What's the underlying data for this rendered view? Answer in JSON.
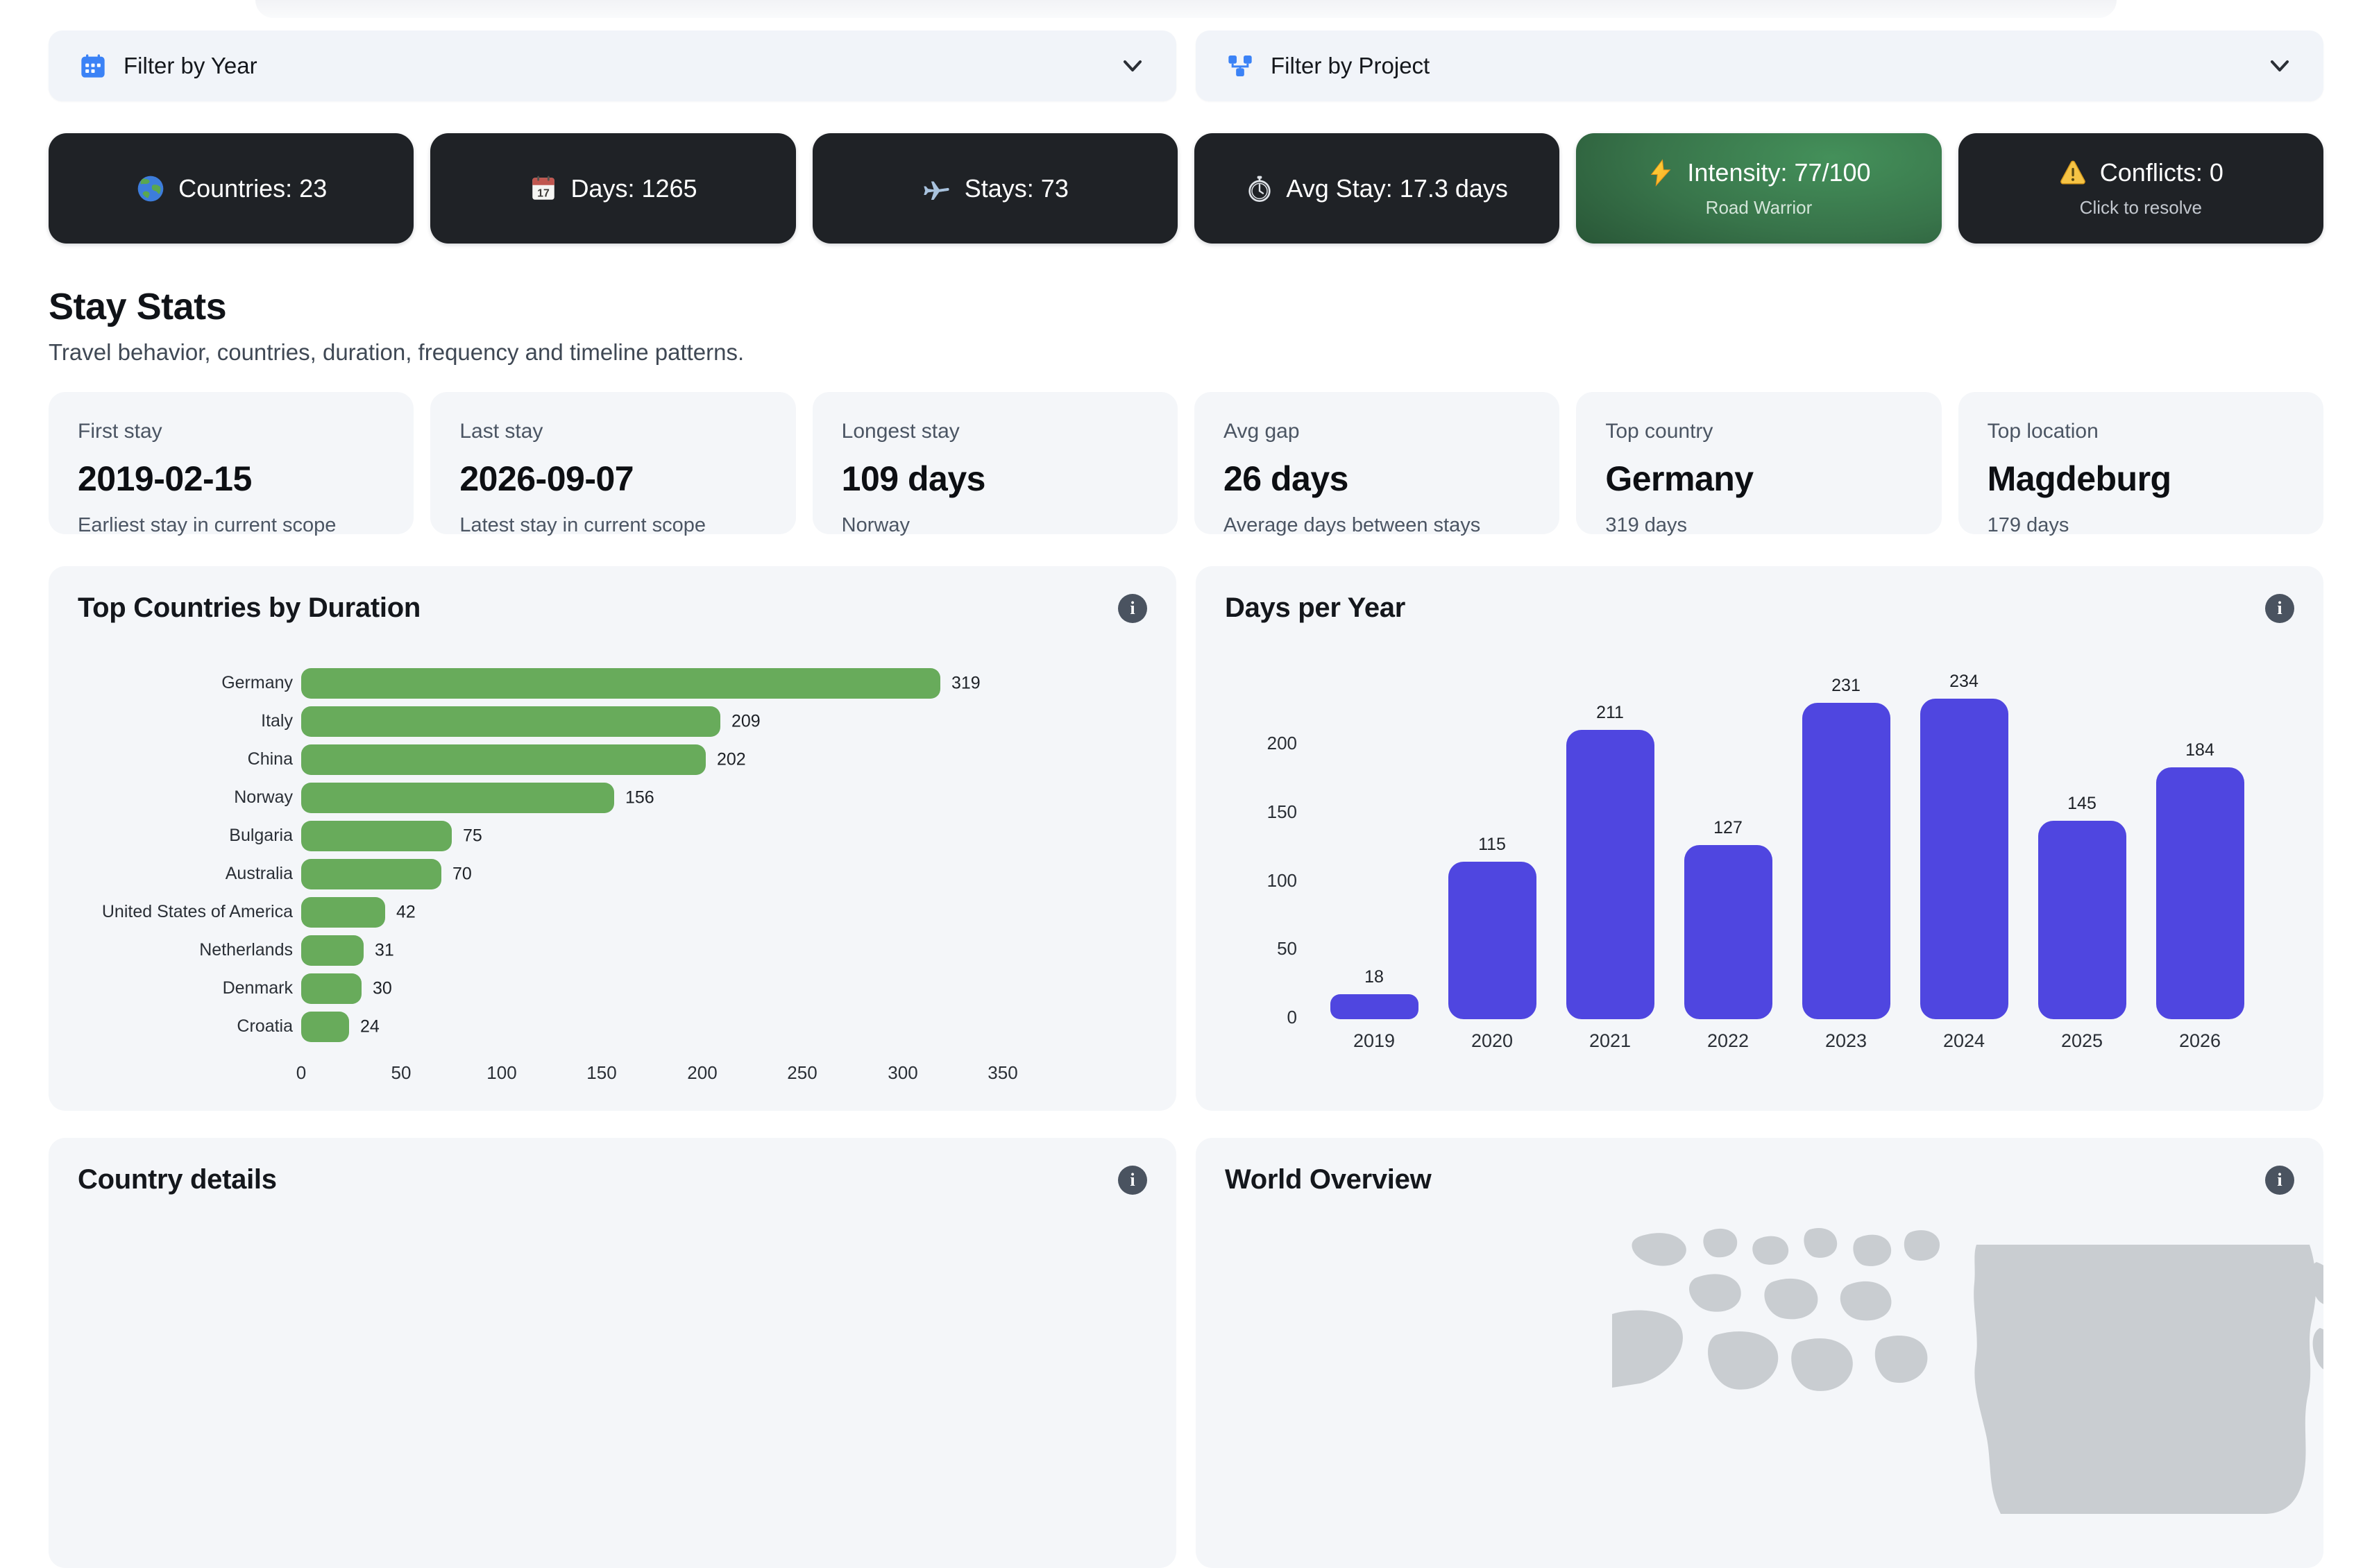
{
  "filters": [
    {
      "label": "Filter by Year",
      "icon": "calendar-icon"
    },
    {
      "label": "Filter by Project",
      "icon": "project-icon"
    }
  ],
  "kpi_pills": [
    {
      "icon": "globe-icon",
      "label": "Countries: 23"
    },
    {
      "icon": "calendar-page-icon",
      "label": "Days: 1265"
    },
    {
      "icon": "airplane-icon",
      "label": "Stays: 73"
    },
    {
      "icon": "stopwatch-icon",
      "label": "Avg Stay: 17.3 days"
    },
    {
      "icon": "lightning-icon",
      "label": "Intensity: 77/100",
      "sub": "Road Warrior",
      "variant": "green"
    },
    {
      "icon": "warning-icon",
      "label": "Conflicts: 0",
      "sub": "Click to resolve"
    }
  ],
  "section": {
    "title": "Stay Stats",
    "subtitle": "Travel behavior, countries, duration, frequency and timeline patterns."
  },
  "stat_cards": [
    {
      "label": "First stay",
      "value": "2019-02-15",
      "sub": "Earliest stay in current scope"
    },
    {
      "label": "Last stay",
      "value": "2026-09-07",
      "sub": "Latest stay in current scope"
    },
    {
      "label": "Longest stay",
      "value": "109 days",
      "sub": "Norway"
    },
    {
      "label": "Avg gap",
      "value": "26 days",
      "sub": "Average days between stays"
    },
    {
      "label": "Top country",
      "value": "Germany",
      "sub": "319 days"
    },
    {
      "label": "Top location",
      "value": "Magdeburg",
      "sub": "179 days"
    }
  ],
  "chart_data": [
    {
      "type": "bar",
      "orientation": "horizontal",
      "title": "Top Countries by Duration",
      "categories": [
        "Germany",
        "Italy",
        "China",
        "Norway",
        "Bulgaria",
        "Australia",
        "United States of America",
        "Netherlands",
        "Denmark",
        "Croatia"
      ],
      "values": [
        319,
        209,
        202,
        156,
        75,
        70,
        42,
        31,
        30,
        24
      ],
      "xlabel": "",
      "ylabel": "",
      "xticks": [
        0,
        50,
        100,
        150,
        200,
        250,
        300,
        350
      ],
      "xlim": [
        0,
        350
      ],
      "bar_color": "#68ab5b",
      "value_labels": true,
      "grid": false,
      "legend": false
    },
    {
      "type": "bar",
      "orientation": "vertical",
      "title": "Days per Year",
      "categories": [
        "2019",
        "2020",
        "2021",
        "2022",
        "2023",
        "2024",
        "2025",
        "2026"
      ],
      "values": [
        18,
        115,
        211,
        127,
        231,
        234,
        145,
        184
      ],
      "xlabel": "",
      "ylabel": "",
      "yticks": [
        0,
        50,
        100,
        150,
        200
      ],
      "ylim": [
        0,
        240
      ],
      "bar_color": "#4f46e0",
      "value_labels": true,
      "grid": false,
      "legend": false
    }
  ],
  "bottom_cards": [
    {
      "title": "Country details"
    },
    {
      "title": "World Overview"
    }
  ],
  "colors": {
    "accent_blue": "#3b82f6",
    "pill_dark": "#1f2226",
    "pill_green_light": "#44905a",
    "pill_green_dark": "#1e4129",
    "bar_green": "#68ab5b",
    "bar_indigo": "#4f46e0",
    "card_bg": "#f4f6f9",
    "map_land": "#c9cdd1"
  }
}
